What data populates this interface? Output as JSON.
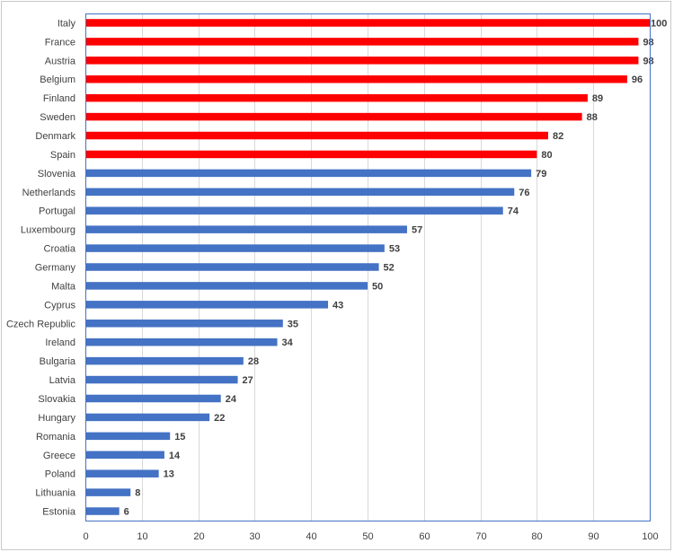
{
  "chart_data": {
    "type": "bar",
    "orientation": "horizontal",
    "title": "",
    "xlabel": "",
    "ylabel": "",
    "xlim": [
      0,
      100
    ],
    "xticks": [
      0,
      10,
      20,
      30,
      40,
      50,
      60,
      70,
      80,
      90,
      100
    ],
    "grid": "vertical",
    "colors": {
      "highlight": "#ff0000",
      "default": "#4472c4"
    },
    "bars": [
      {
        "category": "Italy",
        "value": 100,
        "highlight": true
      },
      {
        "category": "France",
        "value": 98,
        "highlight": true
      },
      {
        "category": "Austria",
        "value": 98,
        "highlight": true
      },
      {
        "category": "Belgium",
        "value": 96,
        "highlight": true
      },
      {
        "category": "Finland",
        "value": 89,
        "highlight": true
      },
      {
        "category": "Sweden",
        "value": 88,
        "highlight": true
      },
      {
        "category": "Denmark",
        "value": 82,
        "highlight": true
      },
      {
        "category": "Spain",
        "value": 80,
        "highlight": true
      },
      {
        "category": "Slovenia",
        "value": 79,
        "highlight": false
      },
      {
        "category": "Netherlands",
        "value": 76,
        "highlight": false
      },
      {
        "category": "Portugal",
        "value": 74,
        "highlight": false
      },
      {
        "category": "Luxembourg",
        "value": 57,
        "highlight": false
      },
      {
        "category": "Croatia",
        "value": 53,
        "highlight": false
      },
      {
        "category": "Germany",
        "value": 52,
        "highlight": false
      },
      {
        "category": "Malta",
        "value": 50,
        "highlight": false
      },
      {
        "category": "Cyprus",
        "value": 43,
        "highlight": false
      },
      {
        "category": "Czech Republic",
        "value": 35,
        "highlight": false
      },
      {
        "category": "Ireland",
        "value": 34,
        "highlight": false
      },
      {
        "category": "Bulgaria",
        "value": 28,
        "highlight": false
      },
      {
        "category": "Latvia",
        "value": 27,
        "highlight": false
      },
      {
        "category": "Slovakia",
        "value": 24,
        "highlight": false
      },
      {
        "category": "Hungary",
        "value": 22,
        "highlight": false
      },
      {
        "category": "Romania",
        "value": 15,
        "highlight": false
      },
      {
        "category": "Greece",
        "value": 14,
        "highlight": false
      },
      {
        "category": "Poland",
        "value": 13,
        "highlight": false
      },
      {
        "category": "Lithuania",
        "value": 8,
        "highlight": false
      },
      {
        "category": "Estonia",
        "value": 6,
        "highlight": false
      }
    ]
  }
}
